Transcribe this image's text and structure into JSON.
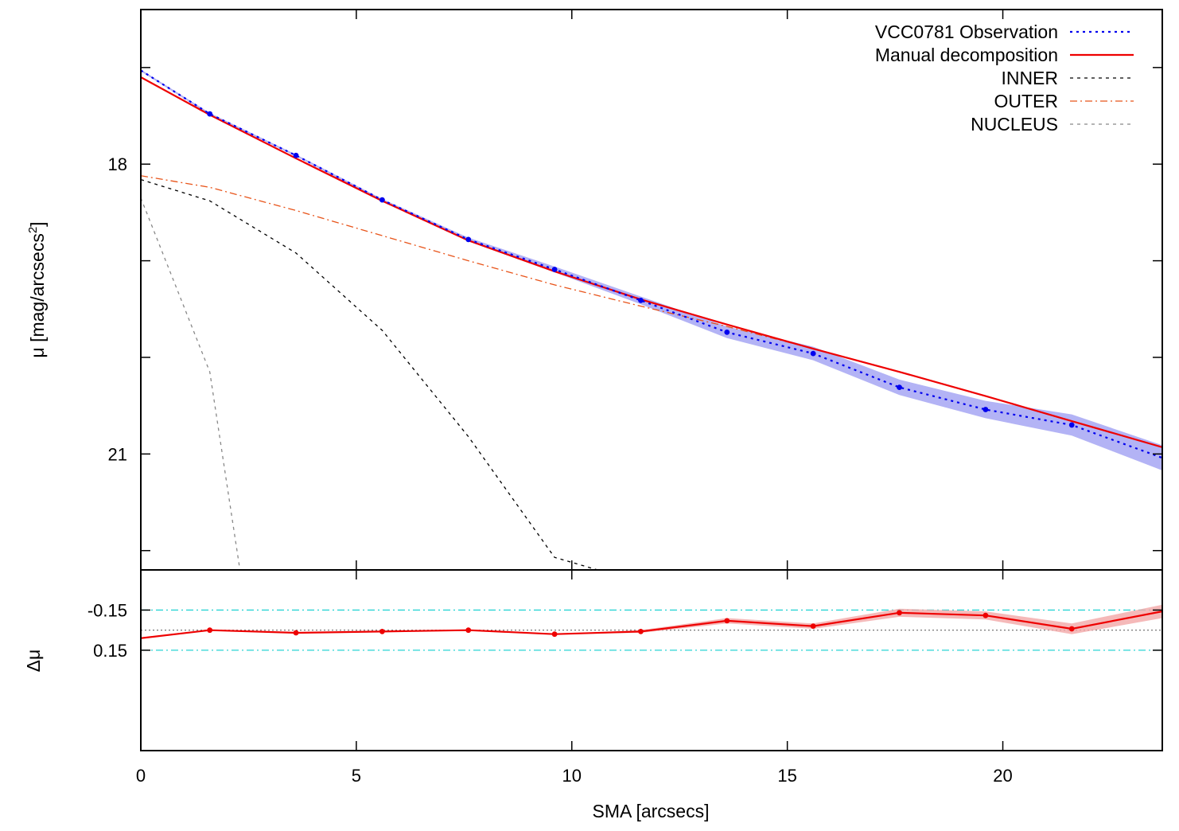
{
  "chart_data": [
    {
      "panel": "profile",
      "type": "line",
      "xlabel": "SMA [arcsecs]",
      "ylabel_main": "μ [mag/arcsecs",
      "ylabel_sup": "2",
      "ylabel_tail": "]",
      "xlim": [
        0,
        23.7
      ],
      "ylim": [
        22.2,
        16.4
      ],
      "y_inverted": true,
      "x_ticks": [
        0,
        5,
        10,
        15,
        20
      ],
      "y_ticks": [
        17,
        18,
        19,
        20,
        21,
        22
      ],
      "y_tick_labels": [
        "",
        "18",
        "",
        "",
        "21",
        ""
      ],
      "legend_position": "top-right",
      "series": [
        {
          "name": "VCC0781 Observation",
          "style": "dotted-with-points",
          "color": "#0000ee",
          "band_color": "#9a9af2",
          "x": [
            0.0,
            1.6,
            3.6,
            5.6,
            7.6,
            9.6,
            11.6,
            13.6,
            15.6,
            17.6,
            19.6,
            21.6,
            23.7
          ],
          "y": [
            17.03,
            17.48,
            17.91,
            18.37,
            18.78,
            19.09,
            19.41,
            19.74,
            19.96,
            20.31,
            20.54,
            20.7,
            21.04
          ],
          "err": [
            0.01,
            0.01,
            0.01,
            0.01,
            0.02,
            0.03,
            0.04,
            0.06,
            0.07,
            0.08,
            0.09,
            0.11,
            0.13
          ]
        },
        {
          "name": "Manual decomposition",
          "style": "solid",
          "color": "#ee0000",
          "x": [
            0.0,
            1.6,
            3.6,
            5.6,
            7.6,
            9.6,
            11.6,
            13.6,
            15.6,
            17.6,
            19.6,
            21.6,
            23.7
          ],
          "y": [
            17.1,
            17.49,
            17.94,
            18.38,
            18.79,
            19.11,
            19.4,
            19.66,
            19.91,
            20.15,
            20.4,
            20.66,
            20.93
          ]
        },
        {
          "name": "INNER",
          "style": "dashed",
          "color": "#000000",
          "x": [
            0.0,
            1.6,
            3.6,
            5.6,
            7.6,
            9.6,
            10.6
          ],
          "y": [
            18.16,
            18.38,
            18.92,
            19.72,
            20.82,
            22.07,
            22.2
          ]
        },
        {
          "name": "OUTER",
          "style": "dash-dot",
          "color": "#e8541a",
          "x": [
            0.0,
            1.6,
            3.6,
            5.6,
            7.6,
            9.6,
            11.6,
            13.6,
            15.6,
            17.6,
            19.6,
            21.6,
            23.7
          ],
          "y": [
            18.12,
            18.24,
            18.48,
            18.74,
            19.0,
            19.25,
            19.47,
            19.68,
            19.91,
            20.15,
            20.4,
            20.66,
            20.93
          ]
        },
        {
          "name": "NUCLEUS",
          "style": "dashed",
          "color": "#888888",
          "x": [
            0.0,
            1.6,
            2.3
          ],
          "y": [
            18.35,
            20.15,
            22.2
          ]
        }
      ]
    },
    {
      "panel": "residual",
      "type": "line",
      "xlabel": "SMA [arcsecs]",
      "ylabel": "Δμ",
      "xlim": [
        0,
        23.7
      ],
      "ylim": [
        0.9,
        -0.45
      ],
      "y_inverted": true,
      "y_ticks": [
        0.15,
        -0.15
      ],
      "y_tick_labels": [
        "0.15",
        "-0.15"
      ],
      "reference_lines": [
        {
          "y": -0.15,
          "color": "#2ad4d4",
          "style": "dash-dot"
        },
        {
          "y": 0.15,
          "color": "#2ad4d4",
          "style": "dash-dot"
        },
        {
          "y": 0.0,
          "color": "#666666",
          "style": "dotted"
        }
      ],
      "series": [
        {
          "name": "residual",
          "style": "solid-with-points",
          "color": "#ee0000",
          "band_color": "#f2a8a8",
          "x": [
            0.0,
            1.6,
            3.6,
            5.6,
            7.6,
            9.6,
            11.6,
            13.6,
            15.6,
            17.6,
            19.6,
            21.6,
            23.7
          ],
          "y": [
            0.06,
            0.0,
            0.02,
            0.01,
            0.0,
            0.03,
            0.01,
            -0.07,
            -0.03,
            -0.13,
            -0.11,
            -0.01,
            -0.14
          ],
          "err": [
            0.0,
            0.0,
            0.0,
            0.0,
            0.0,
            0.0,
            0.01,
            0.02,
            0.02,
            0.03,
            0.03,
            0.04,
            0.05
          ]
        }
      ]
    }
  ]
}
